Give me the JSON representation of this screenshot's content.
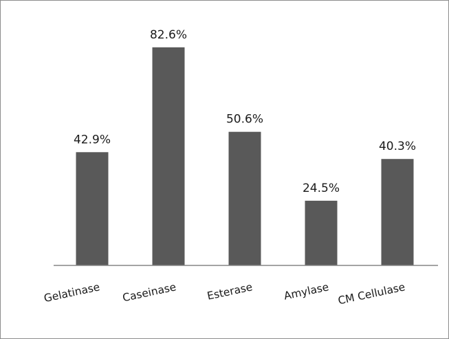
{
  "chart_data": {
    "type": "bar",
    "categories": [
      "Gelatinase",
      "Caseinase",
      "Esterase",
      "Amylase",
      "CM Cellulase"
    ],
    "values": [
      42.9,
      82.6,
      50.6,
      24.5,
      40.3
    ],
    "data_labels": [
      "42.9%",
      "82.6%",
      "50.6%",
      "24.5%",
      "40.3%"
    ],
    "title": "",
    "xlabel": "",
    "ylabel": "",
    "ylim": [
      0,
      90
    ],
    "grid": false,
    "legend": "none",
    "bar_color": "#595959",
    "axis_color": "#868686",
    "border_color": "#8c8c8c"
  }
}
